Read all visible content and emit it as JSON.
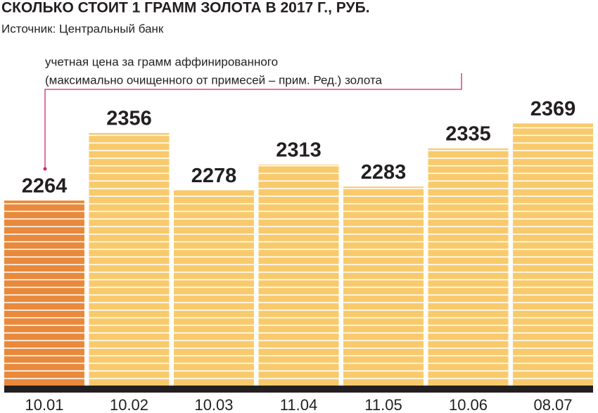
{
  "chart_data": {
    "type": "bar",
    "title": "СКОЛЬКО СТОИТ 1 ГРАММ ЗОЛОТА В 2017 Г., РУБ.",
    "subtitle": "Источник: Центральный банк",
    "annotation": [
      "учетная цена за грамм аффинированного",
      "(максимально очищенного от примесей – прим. Ред.) золота"
    ],
    "categories": [
      "10.01",
      "10.02",
      "10.03",
      "11.04",
      "11.05",
      "10.06",
      "08.07"
    ],
    "values": [
      2264,
      2356,
      2278,
      2313,
      2283,
      2335,
      2369
    ],
    "colors": [
      "#e8893c",
      "#f9ca6c",
      "#f9ca6c",
      "#f9ca6c",
      "#f9ca6c",
      "#f9ca6c",
      "#f9ca6c"
    ],
    "ylim": [
      2012,
      2380
    ]
  }
}
